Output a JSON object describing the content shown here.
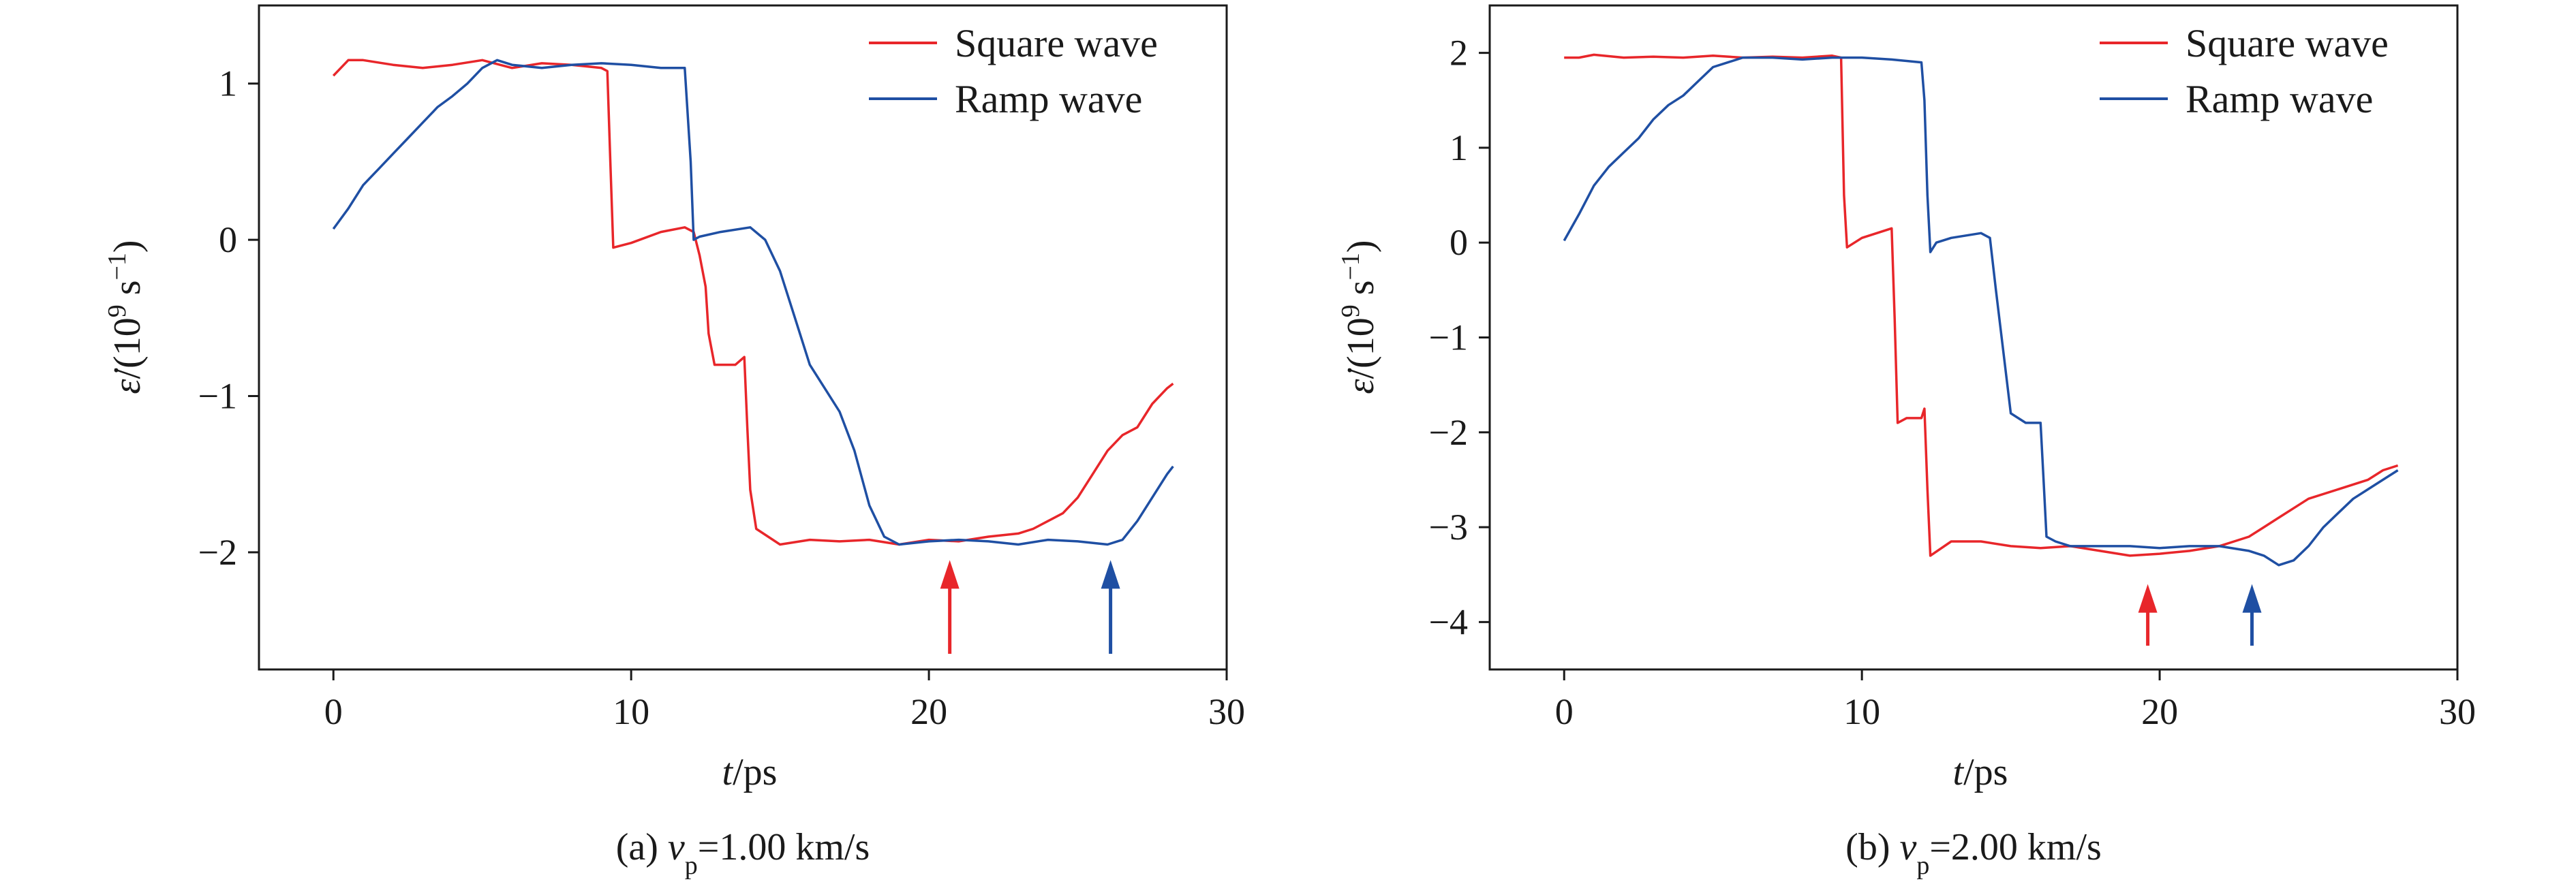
{
  "chart_data": [
    {
      "type": "line",
      "panel": "a",
      "caption": {
        "prefix": "(a) ",
        "var": "v",
        "sub": "p",
        "rest": "=1.00 km/s"
      },
      "xlabel": {
        "var": "t",
        "rest": "/ps"
      },
      "ylabel": {
        "var": "ε̇",
        "rest": "/(10",
        "sup1": "9",
        "mid": " s",
        "sup2": "−1",
        "end": ")"
      },
      "xlim": [
        -2.5,
        30
      ],
      "ylim": [
        -2.75,
        1.5
      ],
      "xticks": [
        0,
        10,
        20,
        30
      ],
      "xtick_labels": [
        "0",
        "10",
        "20",
        "30"
      ],
      "yticks": [
        -2,
        -1,
        0,
        1
      ],
      "ytick_labels": [
        "−2",
        "−1",
        "0",
        "1"
      ],
      "legend_position": "top-right",
      "series": [
        {
          "name": "Square wave",
          "color": "#e8262a",
          "x": [
            0,
            0.5,
            1,
            2,
            3,
            4,
            5,
            6,
            7,
            8,
            9,
            9.2,
            9.3,
            9.4,
            10,
            11,
            11.8,
            12.1,
            12.3,
            12.5,
            12.6,
            12.8,
            13,
            13.5,
            13.8,
            13.9,
            14,
            14.2,
            15,
            16,
            17,
            18,
            19,
            20,
            21,
            22,
            23,
            23.5,
            24,
            24.5,
            25,
            25.5,
            26,
            26.5,
            27,
            27.5,
            28,
            28.2
          ],
          "y": [
            1.05,
            1.15,
            1.15,
            1.12,
            1.1,
            1.12,
            1.15,
            1.1,
            1.13,
            1.12,
            1.1,
            1.08,
            0.5,
            -0.05,
            -0.02,
            0.05,
            0.08,
            0.05,
            -0.1,
            -0.3,
            -0.6,
            -0.8,
            -0.8,
            -0.8,
            -0.75,
            -1.2,
            -1.6,
            -1.85,
            -1.95,
            -1.92,
            -1.93,
            -1.92,
            -1.95,
            -1.92,
            -1.93,
            -1.9,
            -1.88,
            -1.85,
            -1.8,
            -1.75,
            -1.65,
            -1.5,
            -1.35,
            -1.25,
            -1.2,
            -1.05,
            -0.95,
            -0.92
          ]
        },
        {
          "name": "Ramp wave",
          "color": "#1f4fa3",
          "x": [
            0,
            0.5,
            1,
            1.5,
            2,
            2.5,
            3,
            3.5,
            4,
            4.5,
            5,
            5.5,
            6,
            7,
            8,
            9,
            10,
            11,
            11.8,
            12,
            12.1,
            12.3,
            13,
            14,
            14.5,
            15,
            15.5,
            16,
            16.5,
            17,
            17.5,
            18,
            18.5,
            19,
            20,
            21,
            22,
            23,
            24,
            25,
            26,
            26.5,
            27,
            27.5,
            28,
            28.2
          ],
          "y": [
            0.07,
            0.2,
            0.35,
            0.45,
            0.55,
            0.65,
            0.75,
            0.85,
            0.92,
            1.0,
            1.1,
            1.15,
            1.12,
            1.1,
            1.12,
            1.13,
            1.12,
            1.1,
            1.1,
            0.5,
            0.0,
            0.02,
            0.05,
            0.08,
            0.0,
            -0.2,
            -0.5,
            -0.8,
            -0.95,
            -1.1,
            -1.35,
            -1.7,
            -1.9,
            -1.95,
            -1.93,
            -1.92,
            -1.93,
            -1.95,
            -1.92,
            -1.93,
            -1.95,
            -1.92,
            -1.8,
            -1.65,
            -1.5,
            -1.45
          ]
        }
      ],
      "annotations": [
        {
          "type": "arrow",
          "color": "#e8262a",
          "x": 20.7,
          "y_from": -2.65,
          "y_to": -2.05
        },
        {
          "type": "arrow",
          "color": "#1f4fa3",
          "x": 26.1,
          "y_from": -2.65,
          "y_to": -2.05
        }
      ]
    },
    {
      "type": "line",
      "panel": "b",
      "caption": {
        "prefix": "(b) ",
        "var": "v",
        "sub": "p",
        "rest": "=2.00 km/s"
      },
      "xlabel": {
        "var": "t",
        "rest": "/ps"
      },
      "ylabel": {
        "var": "ε̇",
        "rest": "/(10",
        "sup1": "9",
        "mid": " s",
        "sup2": "−1",
        "end": ")"
      },
      "xlim": [
        -2.5,
        30
      ],
      "ylim": [
        -4.5,
        2.5
      ],
      "xticks": [
        0,
        10,
        20,
        30
      ],
      "xtick_labels": [
        "0",
        "10",
        "20",
        "30"
      ],
      "yticks": [
        -4,
        -3,
        -2,
        -1,
        0,
        1,
        2
      ],
      "ytick_labels": [
        "−4",
        "−3",
        "−2",
        "−1",
        "0",
        "1",
        "2"
      ],
      "legend_position": "top-right",
      "series": [
        {
          "name": "Square wave",
          "color": "#e8262a",
          "x": [
            0,
            0.5,
            1,
            2,
            3,
            4,
            5,
            6,
            7,
            8,
            9,
            9.3,
            9.4,
            9.5,
            10,
            10.5,
            11,
            11.1,
            11.2,
            11.5,
            12,
            12.1,
            12.2,
            12.3,
            13,
            14,
            15,
            16,
            17,
            18,
            19,
            20,
            21,
            22,
            22.5,
            23,
            23.5,
            24,
            24.5,
            25,
            26,
            27,
            27.5,
            28
          ],
          "y": [
            1.95,
            1.95,
            1.98,
            1.95,
            1.96,
            1.95,
            1.97,
            1.95,
            1.96,
            1.95,
            1.97,
            1.95,
            0.5,
            -0.05,
            0.05,
            0.1,
            0.15,
            -0.8,
            -1.9,
            -1.85,
            -1.85,
            -1.75,
            -2.6,
            -3.3,
            -3.15,
            -3.15,
            -3.2,
            -3.22,
            -3.2,
            -3.25,
            -3.3,
            -3.28,
            -3.25,
            -3.2,
            -3.15,
            -3.1,
            -3.0,
            -2.9,
            -2.8,
            -2.7,
            -2.6,
            -2.5,
            -2.4,
            -2.35
          ]
        },
        {
          "name": "Ramp wave",
          "color": "#1f4fa3",
          "x": [
            0,
            0.5,
            1,
            1.5,
            2,
            2.5,
            3,
            3.5,
            4,
            4.5,
            5,
            5.5,
            6,
            7,
            8,
            9,
            10,
            11,
            12,
            12.1,
            12.2,
            12.3,
            12.5,
            13,
            14,
            14.3,
            14.5,
            15,
            15.5,
            16,
            16.1,
            16.2,
            16.5,
            17,
            18,
            19,
            20,
            21,
            22,
            23,
            23.5,
            24,
            24.5,
            25,
            25.5,
            26,
            26.5,
            27,
            27.5,
            28
          ],
          "y": [
            0.02,
            0.3,
            0.6,
            0.8,
            0.95,
            1.1,
            1.3,
            1.45,
            1.55,
            1.7,
            1.85,
            1.9,
            1.95,
            1.95,
            1.93,
            1.95,
            1.95,
            1.93,
            1.9,
            1.5,
            0.5,
            -0.1,
            0.0,
            0.05,
            0.1,
            0.05,
            -0.5,
            -1.8,
            -1.9,
            -1.9,
            -2.5,
            -3.1,
            -3.15,
            -3.2,
            -3.2,
            -3.2,
            -3.22,
            -3.2,
            -3.2,
            -3.25,
            -3.3,
            -3.4,
            -3.35,
            -3.2,
            -3.0,
            -2.85,
            -2.7,
            -2.6,
            -2.5,
            -2.4
          ]
        }
      ],
      "annotations": [
        {
          "type": "arrow",
          "color": "#e8262a",
          "x": 19.6,
          "y_from": -4.25,
          "y_to": -3.6
        },
        {
          "type": "arrow",
          "color": "#1f4fa3",
          "x": 23.1,
          "y_from": -4.25,
          "y_to": -3.6
        }
      ]
    }
  ]
}
